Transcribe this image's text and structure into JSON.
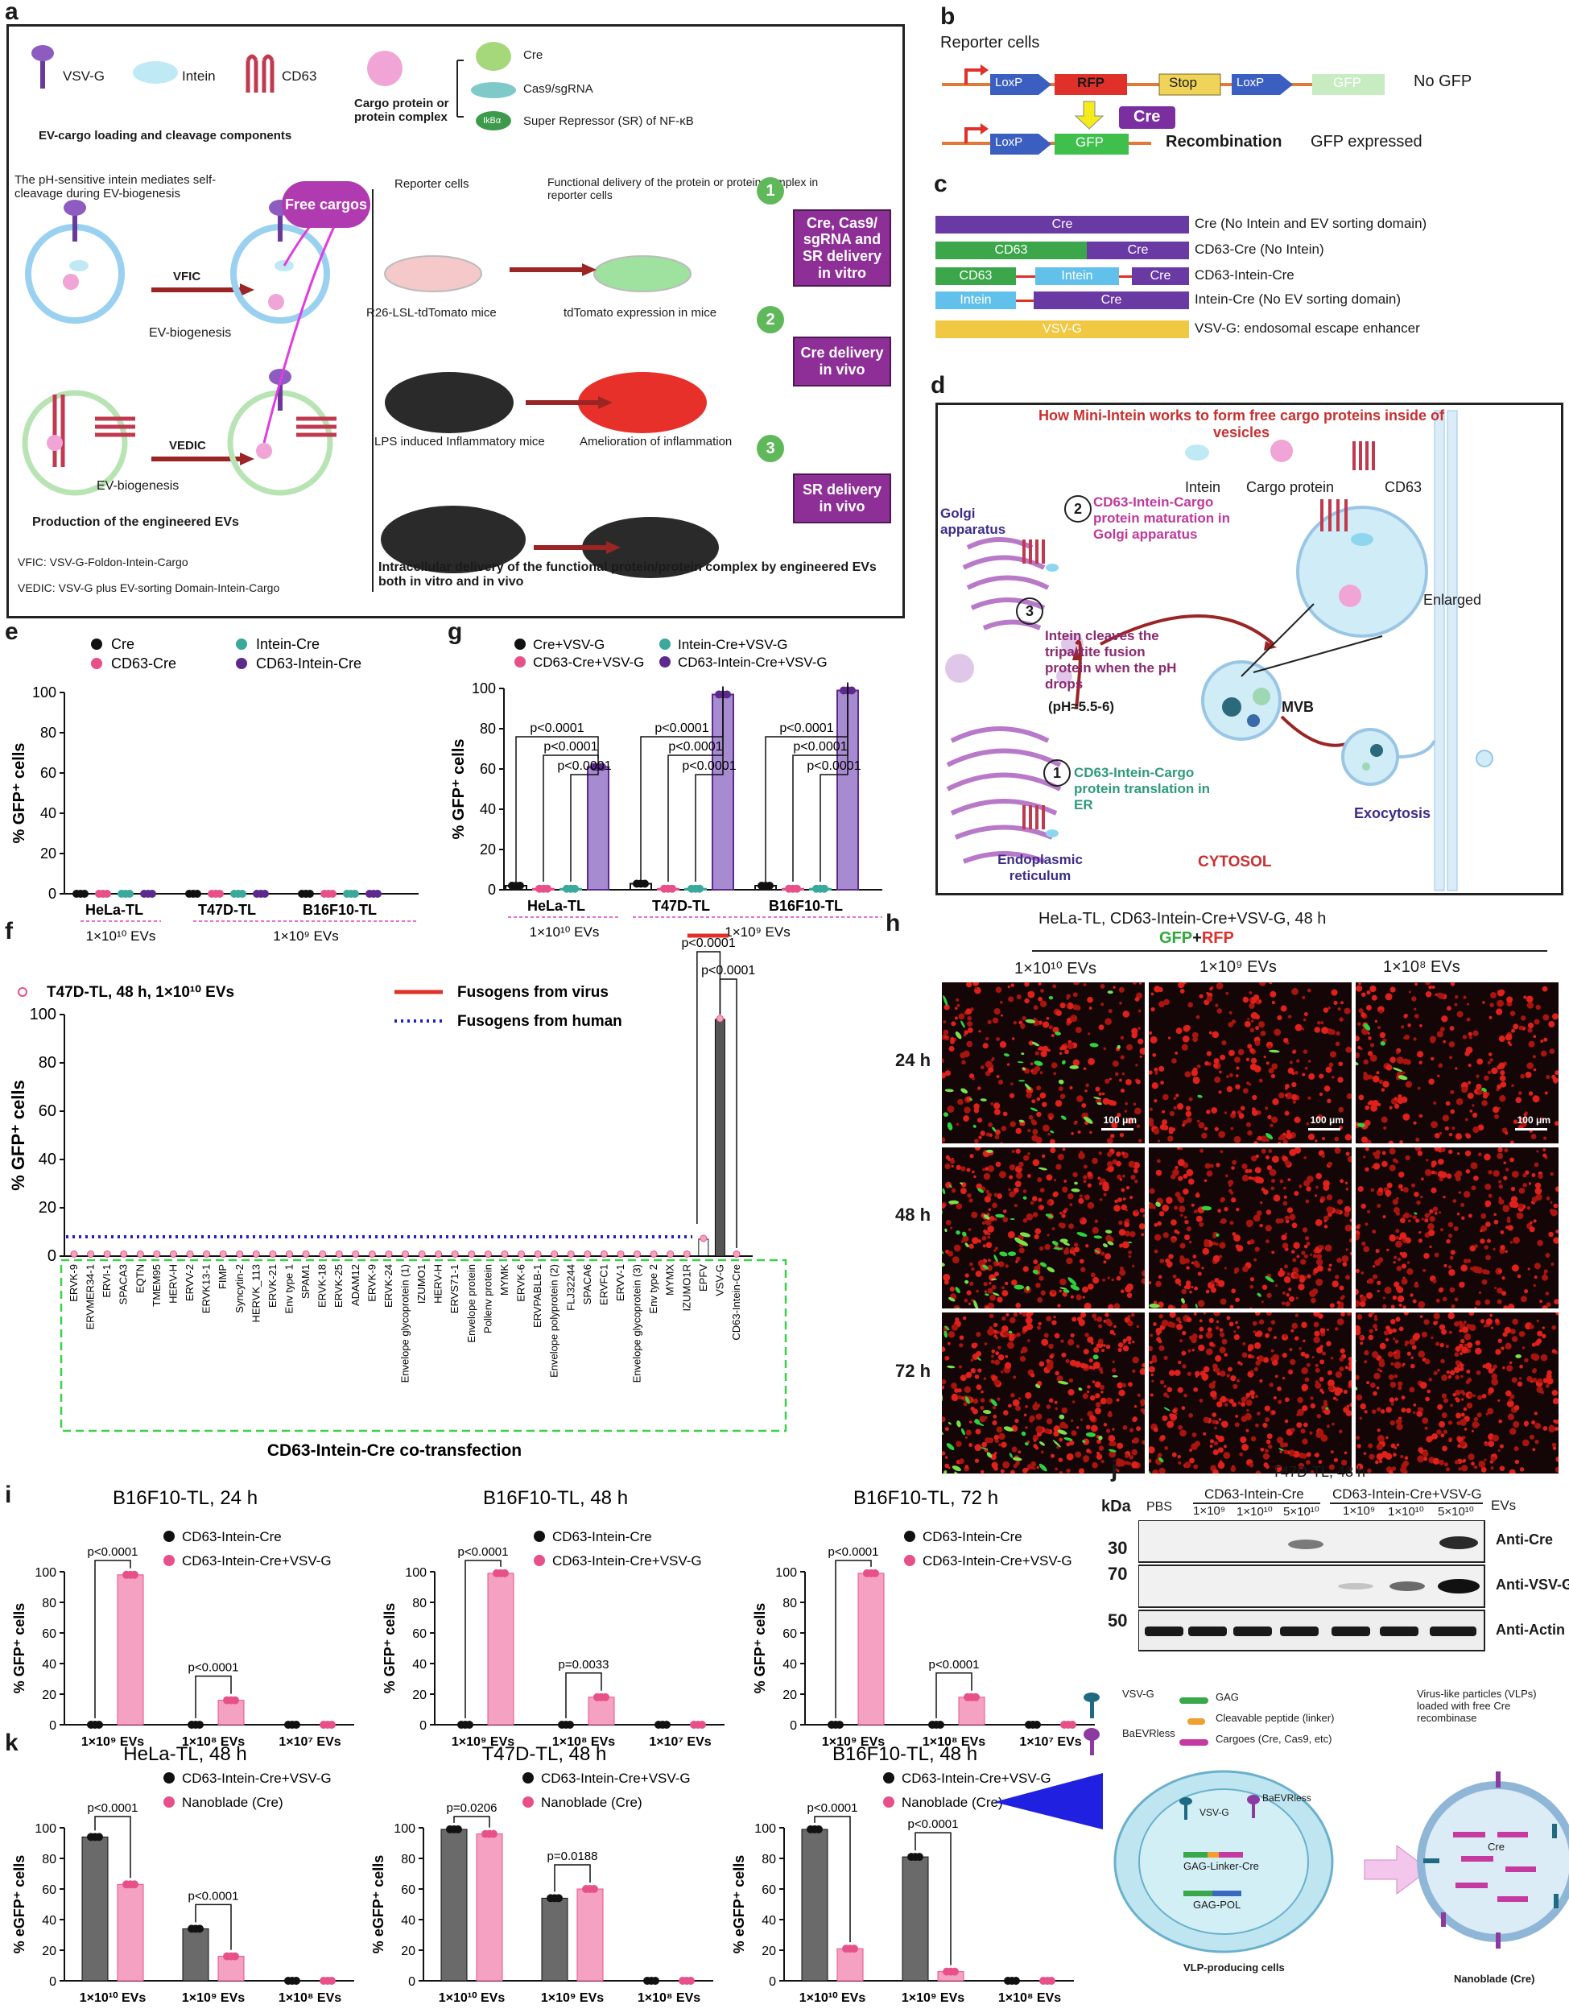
{
  "panels": {
    "a": "a",
    "b": "b",
    "c": "c",
    "d": "d",
    "e": "e",
    "f": "f",
    "g": "g",
    "h": "h",
    "i": "i",
    "j": "j",
    "k": "k"
  },
  "panel_a": {
    "legend_items": [
      "VSV-G",
      "Intein",
      "CD63"
    ],
    "cargo_label": "Cargo protein or protein complex",
    "cargo_list": [
      "Cre",
      "Cas9/sgRNA",
      "Super Repressor (SR) of NF-κB"
    ],
    "ikba": "IkBα",
    "components_title": "EV-cargo loading and cleavage components",
    "intein_note": "The pH-sensitive intein mediates self-cleavage during EV-biogenesis",
    "free_cargos": "Free cargos",
    "vfic": "VFIC",
    "vedic": "VEDIC",
    "ev_biogenesis": "EV-biogenesis",
    "production": "Production of the engineered EVs",
    "vfic_def": "VFIC: VSV-G-Foldon-Intein-Cargo",
    "vedic_def": "VEDIC: VSV-G plus EV-sorting Domain-Intein-Cargo",
    "reporter_cells": "Reporter cells",
    "functional_delivery": "Functional delivery of the protein or protein complex in reporter cells",
    "r26": "R26-LSL-tdTomato mice",
    "tdtomato": "tdTomato expression in mice",
    "lps": "LPS induced Inflammatory mice",
    "amelioration": "Amelioration of inflammation",
    "box1": "Cre, Cas9/ sgRNA and SR delivery in vitro",
    "box2": "Cre delivery in vivo",
    "box3": "SR delivery in vivo",
    "numbers": [
      "1",
      "2",
      "3"
    ],
    "intracellular": "Intracellular delivery of the functional protein/protein complex by engineered EVs both in vitro and in vivo"
  },
  "panel_b": {
    "reporter": "Reporter cells",
    "loxp": "LoxP",
    "rfp": "RFP",
    "stop": "Stop",
    "gfp": "GFP",
    "no_gfp": "No GFP",
    "cre": "Cre",
    "recombination": "Recombination",
    "gfp_expressed": "GFP expressed"
  },
  "panel_c": {
    "constructs": [
      {
        "segments": [
          "Cre"
        ],
        "desc": "Cre (No Intein and EV sorting domain)"
      },
      {
        "segments": [
          "CD63",
          "Cre"
        ],
        "desc": "CD63-Cre (No Intein)"
      },
      {
        "segments": [
          "CD63",
          "Intein",
          "Cre"
        ],
        "desc": "CD63-Intein-Cre"
      },
      {
        "segments": [
          "Intein",
          "Cre"
        ],
        "desc": "Intein-Cre (No EV sorting domain)"
      },
      {
        "segments": [
          "VSV-G"
        ],
        "desc": "VSV-G: endosomal escape enhancer"
      }
    ]
  },
  "panel_d": {
    "title": "How Mini-Intein works to form free cargo proteins inside of vesicles",
    "intein": "Intein",
    "cargo": "Cargo protein",
    "cd63": "CD63",
    "golgi": "Golgi apparatus",
    "step2": "CD63-Intein-Cargo protein maturation in Golgi apparatus",
    "step3": "Intein cleaves the tripartite fusion protein when the pH drops",
    "ph": "(pH≈5.5-6)",
    "enlarged": "Enlarged",
    "mvb": "MVB",
    "step1": "CD63-Intein-Cargo protein translation in ER",
    "exocytosis": "Exocytosis",
    "er": "Endoplasmic reticulum",
    "cytosol": "CYTOSOL",
    "circled": [
      "1",
      "2",
      "3"
    ]
  },
  "panel_e": {
    "legend": [
      "Cre",
      "CD63-Cre",
      "Intein-Cre",
      "CD63-Intein-Cre"
    ],
    "colors": [
      "#111111",
      "#e8508a",
      "#3aa89a",
      "#5b2a8c"
    ],
    "ylabel": "% GFP⁺ cells",
    "ylim": [
      0,
      100
    ],
    "yticks": [
      "0",
      "20",
      "40",
      "60",
      "80",
      "100"
    ],
    "groups": [
      "HeLa-TL",
      "T47D-TL",
      "B16F10-TL"
    ],
    "dose1": "1×10¹⁰ EVs",
    "dose2": "1×10⁹ EVs"
  },
  "panel_g": {
    "legend": [
      "Cre+VSV-G",
      "CD63-Cre+VSV-G",
      "Intein-Cre+VSV-G",
      "CD63-Intein-Cre+VSV-G"
    ],
    "pvalue": "p<0.0001",
    "ylabel": "% GFP⁺ cells",
    "yticks": [
      "0",
      "20",
      "40",
      "60",
      "80",
      "100"
    ],
    "groups": [
      "HeLa-TL",
      "T47D-TL",
      "B16F10-TL"
    ],
    "dose1": "1×10¹⁰ EVs",
    "dose2": "1×10⁹ EVs"
  },
  "panel_f": {
    "title": "T47D-TL, 48 h, 1×10¹⁰ EVs",
    "legend_virus": "Fusogens from virus",
    "legend_human": "Fusogens from human",
    "ylabel": "% GFP⁺ cells",
    "yticks": [
      "0",
      "20",
      "40",
      "60",
      "80",
      "100"
    ],
    "pvalue": "p<0.0001",
    "xtitle": "CD63-Intein-Cre co-transfection",
    "categories": [
      "ERVK-9",
      "ERVMER34-1",
      "ERVI-1",
      "SPACA3",
      "EQTN",
      "TMEM95",
      "HERV-H",
      "ERVV-2",
      "ERVK13-1",
      "FIMP",
      "Syncytin-2",
      "HERVK_113",
      "ERVK-21",
      "Env type 1",
      "SPAM1",
      "ERVK-18",
      "ERVK-25",
      "ADAM12",
      "ERVK-9",
      "ERVK-24",
      "Envelope glycoprotein (1)",
      "IZUMO1",
      "HERV-H",
      "ERVS71-1",
      "Envelope protein",
      "Pollenv protein",
      "MYMK",
      "ERVK-6",
      "ERVPABLB-1",
      "Envelope polyprotein (2)",
      "FLJ32244",
      "SPACA6",
      "ERVFC1",
      "ERVV-1",
      "Envelope glycoprotein (3)",
      "Env type 2",
      "MYMX",
      "IZUMO1R",
      "EPFV",
      "VSV-G",
      "CD63-Intein-Cre"
    ]
  },
  "panel_h": {
    "title": "HeLa-TL, CD63-Intein-Cre+VSV-G, 48 h",
    "gfp": "GFP",
    "plus": "+",
    "rfp": "RFP",
    "columns": [
      "1×10¹⁰ EVs",
      "1×10⁹ EVs",
      "1×10⁸ EVs"
    ],
    "rows": [
      "24 h",
      "48 h",
      "72 h"
    ],
    "scale": "100 μm",
    "green_density": [
      [
        0.3,
        0.04,
        0.08
      ],
      [
        0.55,
        0.1,
        0.02
      ],
      [
        0.4,
        0.08,
        0.01
      ]
    ]
  },
  "panel_i": {
    "titles": [
      "B16F10-TL, 24 h",
      "B16F10-TL, 48 h",
      "B16F10-TL, 72 h"
    ],
    "legend": [
      "CD63-Intein-Cre",
      "CD63-Intein-Cre+VSV-G"
    ],
    "pvalues": [
      [
        "p<0.0001",
        "p<0.0001"
      ],
      [
        "p<0.0001",
        "p=0.0033"
      ],
      [
        "p<0.0001",
        "p<0.0001"
      ]
    ],
    "ylabel": "% GFP⁺ cells",
    "yticks": [
      "0",
      "20",
      "40",
      "60",
      "80",
      "100"
    ],
    "xlabels": [
      "1×10⁹ EVs",
      "1×10⁸ EVs",
      "1×10⁷ EVs"
    ]
  },
  "panel_j": {
    "title": "T47D-TL, 48 h",
    "kda": "kDa",
    "pbs": "PBS",
    "group1": "CD63-Intein-Cre",
    "group2": "CD63-Intein-Cre+VSV-G",
    "evs": "EVs",
    "lanes": [
      "1×10⁹",
      "1×10¹⁰",
      "5×10¹⁰",
      "1×10⁹",
      "1×10¹⁰",
      "5×10¹⁰"
    ],
    "markers": [
      "30",
      "70",
      "50"
    ],
    "bands": [
      "Anti-Cre",
      "Anti-VSV-G",
      "Anti-Actin"
    ]
  },
  "panel_k": {
    "titles": [
      "HeLa-TL, 48 h",
      "T47D-TL, 48 h",
      "B16F10-TL, 48 h"
    ],
    "legend": [
      "CD63-Intein-Cre+VSV-G",
      "Nanoblade (Cre)"
    ],
    "pvalues": [
      [
        "p<0.0001",
        "p<0.0001"
      ],
      [
        "p=0.0206",
        "p=0.0188"
      ],
      [
        "p<0.0001",
        "p<0.0001"
      ]
    ],
    "ylabel": "% eGFP⁺ cells",
    "yticks": [
      "0",
      "20",
      "40",
      "60",
      "80",
      "100"
    ],
    "xlabels": [
      "1×10¹⁰ EVs",
      "1×10⁹ EVs",
      "1×10⁸ EVs"
    ]
  },
  "vlp": {
    "vsvg": "VSV-G",
    "baevrless": "BaEVRless",
    "gag": "GAG",
    "linker": "Cleavable peptide (linker)",
    "cargoes": "Cargoes (Cre, Cas9, etc)",
    "vlp_desc": "Virus-like particles (VLPs) loaded with free Cre recombinase",
    "inner_vsvg": "VSV-G",
    "inner_baev": "BaEVRless",
    "gag_linker_cre": "GAG-Linker-Cre",
    "gag_pol": "GAG-POL",
    "producing": "VLP-producing cells",
    "cre": "Cre",
    "nanoblade": "Nanoblade (Cre)"
  },
  "chart_data": [
    {
      "type": "bar",
      "id": "e",
      "categories": [
        "HeLa-TL",
        "T47D-TL",
        "B16F10-TL"
      ],
      "series": [
        {
          "name": "Cre",
          "values": [
            0,
            0,
            0
          ]
        },
        {
          "name": "CD63-Cre",
          "values": [
            0,
            0,
            0
          ]
        },
        {
          "name": "Intein-Cre",
          "values": [
            0,
            0,
            0
          ]
        },
        {
          "name": "CD63-Intein-Cre",
          "values": [
            0,
            0,
            0
          ]
        }
      ],
      "ylabel": "% GFP⁺ cells",
      "ylim": [
        0,
        100
      ]
    },
    {
      "type": "bar",
      "id": "g",
      "categories": [
        "HeLa-TL",
        "T47D-TL",
        "B16F10-TL"
      ],
      "series": [
        {
          "name": "Cre+VSV-G",
          "values": [
            2,
            3,
            2
          ]
        },
        {
          "name": "CD63-Cre+VSV-G",
          "values": [
            0.5,
            0.5,
            0.5
          ]
        },
        {
          "name": "Intein-Cre+VSV-G",
          "values": [
            0.5,
            0.5,
            0.5
          ]
        },
        {
          "name": "CD63-Intein-Cre+VSV-G",
          "values": [
            61,
            97,
            99
          ]
        }
      ],
      "ylabel": "% GFP⁺ cells",
      "ylim": [
        0,
        100
      ]
    },
    {
      "type": "bar",
      "id": "f",
      "ylabel": "% GFP⁺ cells",
      "ylim": [
        0,
        100
      ],
      "values_note": "all fusogens ~0 except EPFV",
      "epfv": 7,
      "vsvg": 98,
      "cd63_intein_cre": 0,
      "human_baseline": 8
    },
    {
      "type": "bar",
      "id": "i24",
      "categories": [
        "1×10⁹ EVs",
        "1×10⁸ EVs",
        "1×10⁷ EVs"
      ],
      "series": [
        {
          "name": "CD63-Intein-Cre",
          "values": [
            0,
            0,
            0
          ]
        },
        {
          "name": "CD63-Intein-Cre+VSV-G",
          "values": [
            98,
            16,
            0
          ]
        }
      ],
      "ylim": [
        0,
        100
      ]
    },
    {
      "type": "bar",
      "id": "i48",
      "categories": [
        "1×10⁹ EVs",
        "1×10⁸ EVs",
        "1×10⁷ EVs"
      ],
      "series": [
        {
          "name": "CD63-Intein-Cre",
          "values": [
            0,
            0,
            0
          ]
        },
        {
          "name": "CD63-Intein-Cre+VSV-G",
          "values": [
            99,
            18,
            0
          ]
        }
      ],
      "ylim": [
        0,
        100
      ]
    },
    {
      "type": "bar",
      "id": "i72",
      "categories": [
        "1×10⁹ EVs",
        "1×10⁸ EVs",
        "1×10⁷ EVs"
      ],
      "series": [
        {
          "name": "CD63-Intein-Cre",
          "values": [
            0,
            0,
            0
          ]
        },
        {
          "name": "CD63-Intein-Cre+VSV-G",
          "values": [
            99,
            18,
            0
          ]
        }
      ],
      "ylim": [
        0,
        100
      ]
    },
    {
      "type": "bar",
      "id": "kh",
      "categories": [
        "1×10¹⁰ EVs",
        "1×10⁹ EVs",
        "1×10⁸ EVs"
      ],
      "series": [
        {
          "name": "CD63-Intein-Cre+VSV-G",
          "values": [
            94,
            34,
            0
          ]
        },
        {
          "name": "Nanoblade (Cre)",
          "values": [
            63,
            16,
            0
          ]
        }
      ],
      "ylim": [
        0,
        100
      ]
    },
    {
      "type": "bar",
      "id": "kt",
      "categories": [
        "1×10¹⁰ EVs",
        "1×10⁹ EVs",
        "1×10⁸ EVs"
      ],
      "series": [
        {
          "name": "CD63-Intein-Cre+VSV-G",
          "values": [
            99,
            54,
            0
          ]
        },
        {
          "name": "Nanoblade (Cre)",
          "values": [
            96,
            60,
            0
          ]
        }
      ],
      "ylim": [
        0,
        100
      ]
    },
    {
      "type": "bar",
      "id": "kb",
      "categories": [
        "1×10¹⁰ EVs",
        "1×10⁹ EVs",
        "1×10⁸ EVs"
      ],
      "series": [
        {
          "name": "CD63-Intein-Cre+VSV-G",
          "values": [
            99,
            81,
            0
          ]
        },
        {
          "name": "Nanoblade (Cre)",
          "values": [
            21,
            6,
            0
          ]
        }
      ],
      "ylim": [
        0,
        100
      ]
    }
  ]
}
